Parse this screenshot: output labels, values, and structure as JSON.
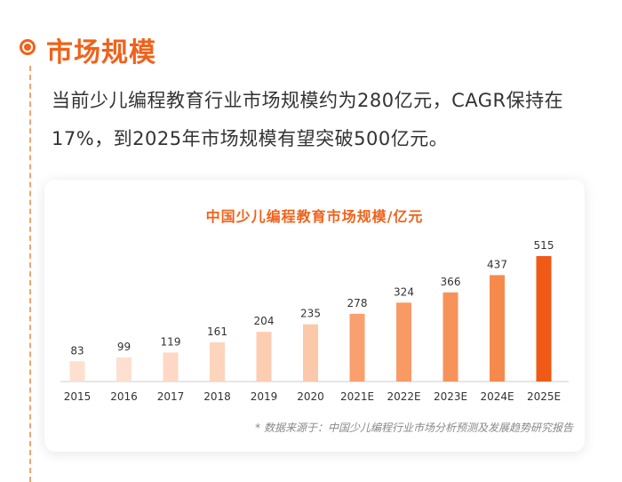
{
  "section": {
    "title": "市场规模"
  },
  "intro": {
    "text": "当前少儿编程教育行业市场规模约为280亿元，CAGR保持在17%，到2025年市场规模有望突破500亿元。"
  },
  "footnote": "* 数据来源于：中国少儿编程行业市场分析预测及发展趋势研究报告",
  "colors": {
    "accent": "#f0621a"
  },
  "chart_data": {
    "type": "bar",
    "title": "中国少儿编程教育市场规模/亿元",
    "categories": [
      "2015",
      "2016",
      "2017",
      "2018",
      "2019",
      "2020",
      "2021E",
      "2022E",
      "2023E",
      "2024E",
      "2025E"
    ],
    "values": [
      83,
      99,
      119,
      161,
      204,
      235,
      278,
      324,
      366,
      437,
      515
    ],
    "bar_colors": [
      "#fde0d0",
      "#fde0d0",
      "#fdd8c4",
      "#fdd4bc",
      "#fdcdb2",
      "#fcc8aa",
      "#f9a06e",
      "#f89a64",
      "#f7935a",
      "#f68a4d",
      "#f05a16"
    ],
    "ylim": [
      0,
      515
    ],
    "grid": false,
    "xlabel": "",
    "ylabel": ""
  }
}
